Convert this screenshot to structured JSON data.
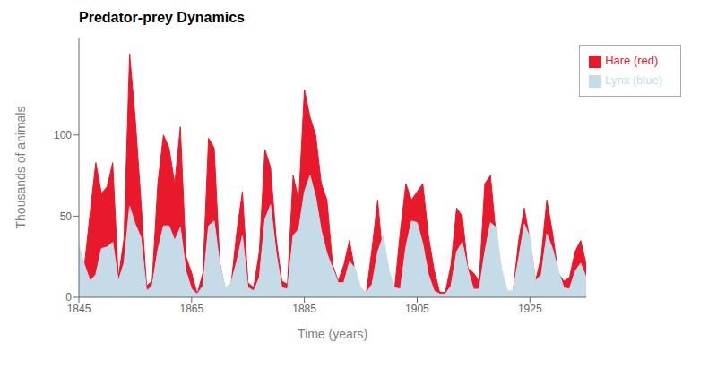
{
  "chart_data": {
    "type": "area",
    "title": "Predator-prey Dynamics",
    "xlabel": "Time (years)",
    "ylabel": "Thousands of animals",
    "x": [
      1845,
      1846,
      1847,
      1848,
      1849,
      1850,
      1851,
      1852,
      1853,
      1854,
      1855,
      1856,
      1857,
      1858,
      1859,
      1860,
      1861,
      1862,
      1863,
      1864,
      1865,
      1866,
      1867,
      1868,
      1869,
      1870,
      1871,
      1872,
      1873,
      1874,
      1875,
      1876,
      1877,
      1878,
      1879,
      1880,
      1881,
      1882,
      1883,
      1884,
      1885,
      1886,
      1887,
      1888,
      1889,
      1890,
      1891,
      1892,
      1893,
      1894,
      1895,
      1896,
      1897,
      1898,
      1899,
      1900,
      1901,
      1902,
      1903,
      1904,
      1905,
      1906,
      1907,
      1908,
      1909,
      1910,
      1911,
      1912,
      1913,
      1914,
      1915,
      1916,
      1917,
      1918,
      1919,
      1920,
      1921,
      1922,
      1923,
      1924,
      1925,
      1926,
      1927,
      1928,
      1929,
      1930,
      1931,
      1932,
      1933,
      1934,
      1935
    ],
    "series": [
      {
        "name": "Hare (red)",
        "color": "#e8192c",
        "values": [
          20,
          20,
          52,
          83,
          64,
          68,
          83,
          12,
          36,
          150,
          110,
          60,
          7,
          10,
          70,
          100,
          92,
          70,
          105,
          25,
          15,
          2,
          15,
          98,
          92,
          21,
          4,
          8,
          40,
          65,
          9,
          6,
          28,
          91,
          80,
          36,
          10,
          8,
          75,
          60,
          128,
          111,
          100,
          70,
          60,
          20,
          10,
          20,
          35,
          15,
          3,
          3,
          30,
          60,
          21,
          5,
          5,
          40,
          70,
          60,
          65,
          70,
          38,
          17,
          3,
          3,
          20,
          55,
          50,
          18,
          15,
          10,
          70,
          75,
          38,
          10,
          3,
          3,
          35,
          55,
          35,
          10,
          25,
          60,
          40,
          15,
          10,
          12,
          28,
          35,
          20
        ]
      },
      {
        "name": "Lynx (blue)",
        "color": "#c5dce8",
        "values": [
          32,
          20,
          10,
          14,
          30,
          31,
          34,
          10,
          21,
          56,
          45,
          37,
          4,
          7,
          29,
          44,
          44,
          35,
          43,
          16,
          5,
          2,
          7,
          44,
          47,
          20,
          6,
          9,
          22,
          38,
          6,
          4,
          12,
          48,
          57,
          27,
          6,
          5,
          38,
          42,
          65,
          75,
          62,
          41,
          27,
          18,
          9,
          9,
          22,
          18,
          6,
          3,
          8,
          28,
          38,
          17,
          6,
          5,
          31,
          47,
          46,
          33,
          14,
          4,
          2,
          2,
          7,
          28,
          34,
          17,
          5,
          5,
          28,
          46,
          43,
          17,
          4,
          4,
          24,
          45,
          37,
          10,
          14,
          39,
          30,
          17,
          6,
          5,
          16,
          21,
          12
        ]
      }
    ],
    "xlim": [
      1845,
      1935
    ],
    "ylim": [
      0,
      160
    ],
    "xticks": [
      1845,
      1865,
      1885,
      1905,
      1925
    ],
    "yticks": [
      0,
      50,
      100
    ],
    "grid": false,
    "legend": "upper right"
  }
}
